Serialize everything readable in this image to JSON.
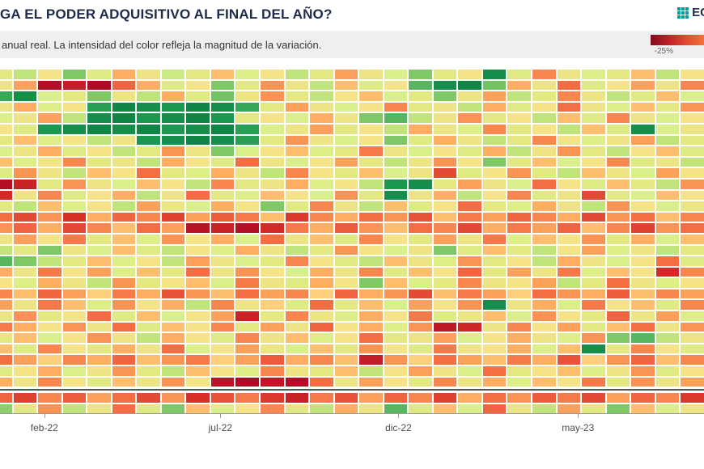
{
  "header": {
    "title": "GA EL PODER ADQUISITIVO AL FINAL DEL AÑO?",
    "logo_text": "EC"
  },
  "subtitle_bar": {
    "text": "anual real. La intensidad del color refleja la magnitud de la variación.",
    "legend_min_label": "-25%"
  },
  "colors": {
    "title_navy": "#1c2b4a",
    "logo_teal": "#00a19a",
    "subtitle_bg": "#efefef",
    "axis_line": "#9a9a9a",
    "separator": "#555555",
    "legend_gradient": [
      "#7f0d20",
      "#c21f28",
      "#e2492f",
      "#f4713f"
    ]
  },
  "chart_data": {
    "type": "heatmap",
    "title": "GA EL PODER ADQUISITIVO AL FINAL DEL AÑO?",
    "subtitle": "anual real. La intensidad del color refleja la magnitud de la variación.",
    "unit": "%",
    "value_domain": [
      -25,
      25
    ],
    "legend_min_label": "-25%",
    "grid": false,
    "x_ticks": [
      {
        "label": "feb-22",
        "pct": 6.3
      },
      {
        "label": "jul-22",
        "pct": 31.3
      },
      {
        "label": "dic-22",
        "pct": 56.6
      },
      {
        "label": "may-23",
        "pct": 82.1
      }
    ],
    "color_stops": [
      [
        -25,
        "#a50026"
      ],
      [
        -15,
        "#d73027"
      ],
      [
        -8,
        "#f46d43"
      ],
      [
        -3,
        "#fdae61"
      ],
      [
        0,
        "#fee08b"
      ],
      [
        3,
        "#e4e882"
      ],
      [
        6,
        "#d9ef8b"
      ],
      [
        10,
        "#a6d96a"
      ],
      [
        15,
        "#66bd63"
      ],
      [
        20,
        "#1a9850"
      ],
      [
        25,
        "#006837"
      ]
    ],
    "separator_after_row": 28,
    "values": [
      [
        3,
        8,
        1,
        13,
        4,
        -3,
        2,
        7,
        3,
        -2,
        5,
        1,
        8,
        3,
        -4,
        2,
        6,
        13,
        3,
        1,
        21,
        4,
        -6,
        2,
        5,
        3,
        -2,
        8,
        1
      ],
      [
        2,
        -4,
        -22,
        -19,
        -23,
        -9,
        -3,
        4,
        1,
        13,
        3,
        -5,
        2,
        8,
        -2,
        4,
        1,
        16,
        21,
        22,
        14,
        -3,
        2,
        -8,
        4,
        1,
        -4,
        2,
        -6
      ],
      [
        18,
        21,
        6,
        3,
        13,
        2,
        8,
        -3,
        4,
        14,
        2,
        -5,
        3,
        8,
        1,
        -2,
        6,
        3,
        13,
        2,
        -4,
        8,
        3,
        -6,
        2,
        8,
        4,
        -2,
        6
      ],
      [
        2,
        -3,
        5,
        1,
        19,
        22,
        21,
        20,
        22,
        21,
        18,
        3,
        -4,
        2,
        6,
        1,
        -6,
        3,
        2,
        8,
        -3,
        4,
        1,
        -8,
        2,
        5,
        -2,
        3,
        -5
      ],
      [
        5,
        2,
        -4,
        8,
        21,
        22,
        20,
        21,
        22,
        20,
        3,
        1,
        6,
        -3,
        2,
        13,
        16,
        8,
        2,
        -5,
        3,
        1,
        8,
        -2,
        4,
        -6,
        2,
        6,
        1
      ],
      [
        1,
        4,
        20,
        21,
        22,
        21,
        22,
        20,
        21,
        22,
        19,
        6,
        2,
        -4,
        3,
        1,
        8,
        -3,
        2,
        5,
        -6,
        3,
        1,
        8,
        -2,
        4,
        21,
        6,
        2
      ],
      [
        3,
        -2,
        5,
        1,
        8,
        2,
        20,
        21,
        22,
        21,
        19,
        3,
        -5,
        2,
        6,
        1,
        13,
        4,
        -3,
        2,
        8,
        3,
        -6,
        1,
        5,
        2,
        -4,
        8,
        3
      ],
      [
        6,
        2,
        -3,
        4,
        1,
        8,
        3,
        -5,
        2,
        13,
        6,
        1,
        -2,
        5,
        3,
        -7,
        2,
        6,
        1,
        4,
        -3,
        8,
        2,
        -5,
        3,
        8,
        1,
        -2,
        4
      ],
      [
        -2,
        5,
        1,
        -6,
        3,
        2,
        8,
        -3,
        1,
        4,
        -8,
        2,
        6,
        1,
        -4,
        3,
        8,
        2,
        -5,
        1,
        13,
        3,
        -2,
        6,
        1,
        -6,
        4,
        2,
        8
      ],
      [
        4,
        -5,
        2,
        8,
        -2,
        1,
        -8,
        3,
        5,
        -3,
        2,
        8,
        -6,
        1,
        3,
        -2,
        6,
        2,
        -12,
        4,
        1,
        -5,
        3,
        8,
        -2,
        2,
        6,
        -4,
        1
      ],
      [
        -22,
        -18,
        3,
        -5,
        2,
        6,
        -2,
        1,
        8,
        -6,
        3,
        2,
        -3,
        5,
        1,
        8,
        20,
        21,
        3,
        -4,
        2,
        6,
        -8,
        1,
        4,
        -2,
        3,
        8,
        -5
      ],
      [
        -16,
        2,
        -6,
        4,
        1,
        -3,
        8,
        2,
        -8,
        3,
        5,
        -2,
        1,
        6,
        -5,
        3,
        21,
        2,
        -3,
        8,
        1,
        -6,
        4,
        2,
        -12,
        3,
        6,
        -2,
        1
      ],
      [
        3,
        8,
        -2,
        5,
        1,
        8,
        -4,
        2,
        6,
        -3,
        1,
        13,
        3,
        -6,
        2,
        8,
        -2,
        4,
        1,
        -8,
        3,
        5,
        -3,
        2,
        8,
        -5,
        1,
        6,
        2
      ],
      [
        -8,
        -12,
        -5,
        -15,
        -3,
        -9,
        -6,
        -13,
        -4,
        -10,
        -7,
        -2,
        -14,
        -6,
        -3,
        -8,
        -5,
        -11,
        -2,
        -7,
        -4,
        -9,
        -6,
        -3,
        -12,
        -5,
        -8,
        -2,
        -6
      ],
      [
        -5,
        -9,
        -3,
        -12,
        -6,
        -2,
        -8,
        -4,
        -21,
        -18,
        -22,
        -16,
        -7,
        -3,
        -10,
        -5,
        -2,
        -8,
        -6,
        -12,
        -3,
        -7,
        -4,
        -9,
        -2,
        -6,
        -13,
        -5,
        -8
      ],
      [
        2,
        -4,
        1,
        -7,
        3,
        -2,
        5,
        -5,
        1,
        -3,
        6,
        -8,
        2,
        -2,
        4,
        -6,
        1,
        3,
        -4,
        2,
        -7,
        5,
        -2,
        1,
        -5,
        3,
        -3,
        6,
        -2
      ],
      [
        8,
        3,
        13,
        2,
        6,
        -2,
        4,
        8,
        1,
        5,
        -3,
        2,
        8,
        3,
        -5,
        1,
        6,
        2,
        13,
        4,
        -2,
        3,
        8,
        1,
        -4,
        5,
        2,
        8,
        3
      ],
      [
        16,
        13,
        8,
        3,
        -2,
        5,
        1,
        8,
        -4,
        2,
        6,
        3,
        -6,
        1,
        4,
        8,
        -2,
        2,
        5,
        -5,
        3,
        1,
        8,
        -3,
        2,
        6,
        1,
        -8,
        4
      ],
      [
        -3,
        2,
        -7,
        1,
        -4,
        5,
        -2,
        3,
        -8,
        2,
        -5,
        1,
        6,
        -3,
        2,
        -6,
        4,
        -2,
        1,
        -9,
        3,
        -4,
        2,
        -7,
        5,
        -2,
        1,
        -16,
        -6
      ],
      [
        1,
        5,
        -3,
        2,
        8,
        -5,
        3,
        1,
        -2,
        6,
        -7,
        2,
        4,
        -3,
        1,
        13,
        -2,
        5,
        3,
        -6,
        2,
        1,
        -4,
        8,
        3,
        -8,
        2,
        5,
        1
      ],
      [
        -6,
        -2,
        -9,
        -4,
        -1,
        -7,
        -3,
        -11,
        -5,
        -2,
        -8,
        -4,
        -6,
        -1,
        -9,
        -3,
        -5,
        -12,
        -2,
        -7,
        -4,
        -1,
        -8,
        -5,
        -3,
        -10,
        -2,
        -6,
        -4
      ],
      [
        -4,
        2,
        -7,
        -2,
        5,
        -5,
        1,
        -3,
        8,
        -6,
        2,
        -1,
        4,
        -8,
        3,
        -2,
        6,
        -4,
        1,
        -5,
        21,
        2,
        -3,
        5,
        -7,
        1,
        -2,
        4,
        -6
      ],
      [
        2,
        -5,
        3,
        1,
        -8,
        4,
        -2,
        6,
        1,
        -4,
        -18,
        3,
        -6,
        2,
        5,
        -3,
        1,
        -7,
        4,
        2,
        -2,
        6,
        -5,
        1,
        3,
        -9,
        2,
        -4,
        5
      ],
      [
        -7,
        -3,
        1,
        -5,
        2,
        -8,
        4,
        -2,
        1,
        -6,
        3,
        -4,
        2,
        -9,
        1,
        -3,
        5,
        -5,
        -20,
        -17,
        2,
        -6,
        1,
        -4,
        3,
        -2,
        -8,
        2,
        -5
      ],
      [
        3,
        -2,
        6,
        1,
        -5,
        2,
        8,
        -3,
        1,
        4,
        -6,
        2,
        -2,
        5,
        1,
        -8,
        3,
        2,
        -4,
        6,
        1,
        -3,
        2,
        5,
        -5,
        13,
        16,
        8,
        2
      ],
      [
        -2,
        4,
        -6,
        1,
        3,
        -3,
        2,
        -8,
        5,
        1,
        -4,
        2,
        6,
        -2,
        3,
        -5,
        1,
        4,
        -7,
        2,
        1,
        -3,
        5,
        -2,
        21,
        3,
        -6,
        1,
        4
      ],
      [
        -8,
        -4,
        -1,
        -6,
        -3,
        -9,
        -2,
        -5,
        -7,
        -1,
        -4,
        -10,
        -3,
        -6,
        -2,
        -19,
        -5,
        -1,
        -8,
        -4,
        -2,
        -7,
        -3,
        -11,
        -1,
        -5,
        -9,
        -2,
        -6
      ],
      [
        4,
        1,
        -3,
        6,
        2,
        -5,
        3,
        8,
        -2,
        1,
        5,
        -6,
        2,
        3,
        -2,
        8,
        1,
        -4,
        2,
        6,
        -8,
        3,
        1,
        -2,
        5,
        2,
        -5,
        4,
        1
      ],
      [
        -3,
        2,
        -6,
        1,
        4,
        -2,
        2,
        -5,
        1,
        -21,
        -23,
        -20,
        -22,
        -8,
        2,
        -4,
        1,
        3,
        -6,
        2,
        -3,
        5,
        -2,
        1,
        -7,
        3,
        -5,
        2,
        -4
      ],
      [
        -9,
        -13,
        -6,
        -10,
        -4,
        -8,
        -12,
        -5,
        -15,
        -11,
        -7,
        -14,
        -18,
        -7,
        -11,
        -4,
        -9,
        -6,
        -13,
        -3,
        -8,
        -5,
        -10,
        -7,
        -12,
        -4,
        -9,
        -6,
        -14
      ],
      [
        12,
        3,
        -5,
        8,
        2,
        -8,
        4,
        13,
        -2,
        6,
        1,
        -6,
        3,
        8,
        -3,
        2,
        16,
        4,
        -2,
        6,
        -9,
        2,
        8,
        -4,
        3,
        13,
        -2,
        5,
        2
      ]
    ]
  }
}
